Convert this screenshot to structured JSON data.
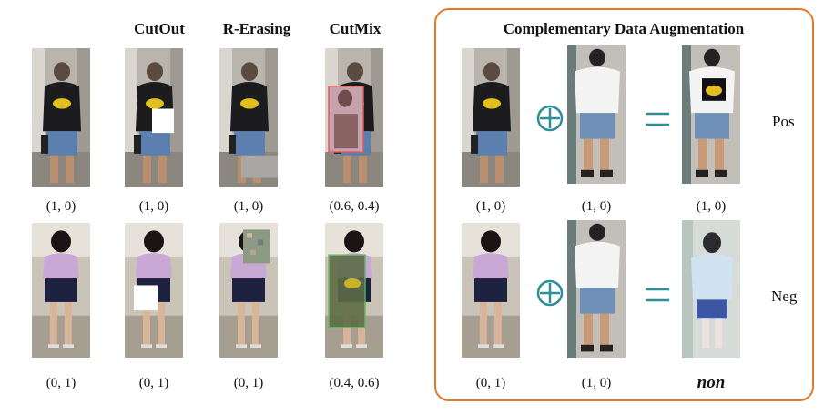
{
  "headers": {
    "cutout": "CutOut",
    "rerasing": "R-Erasing",
    "cutmix": "CutMix",
    "cda": "Complementary Data Augmentation"
  },
  "top_row_captions": [
    "(1, 0)",
    "(1, 0)",
    "(1, 0)",
    "(0.6, 0.4)",
    "(1, 0)",
    "(1, 0)",
    "(1, 0)"
  ],
  "bottom_row_captions": [
    "(0, 1)",
    "(0, 1)",
    "(0, 1)",
    "(0.4, 0.6)",
    "(0, 1)",
    "(1, 0)",
    "non"
  ],
  "side_labels": {
    "pos": "Pos",
    "neg": "Neg"
  },
  "colors": {
    "frame": "#e07a2b",
    "operator": "#2f8f98",
    "cutmix_red": "#e05a5a",
    "cutmix_green": "#5fb85f"
  }
}
